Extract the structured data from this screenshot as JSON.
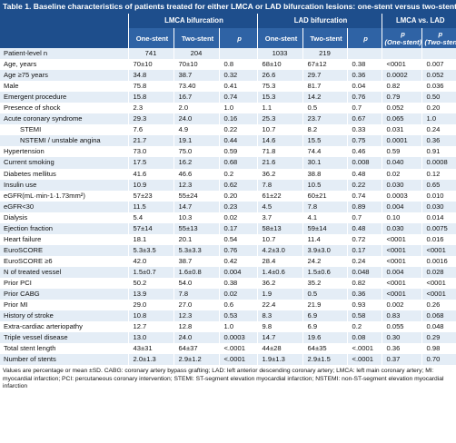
{
  "title": "Table 1. Baseline characteristics of patients treated for either LMCA or LAD bifurcation lesions: one-stent versus two-stent approach.",
  "header": {
    "lmca_group": "LMCA bifurcation",
    "lad_group": "LAD bifurcation",
    "cmp_group": "LMCA vs. LAD",
    "one_stent": "One-stent",
    "two_stent": "Two-stent",
    "p": "p",
    "p1_a": "p",
    "p1_b": "(One-stent)",
    "p2_a": "p",
    "p2_b": "(Two-stent)"
  },
  "rows": [
    [
      "Patient-level n",
      "741",
      "204",
      "",
      "1033",
      "219",
      "",
      "",
      ""
    ],
    [
      "Age, years",
      "70±10",
      "70±10",
      "0.8",
      "68±10",
      "67±12",
      "0.38",
      "<0001",
      "0.007"
    ],
    [
      "Age ≥75 years",
      "34.8",
      "38.7",
      "0.32",
      "26.6",
      "29.7",
      "0.36",
      "0.0002",
      "0.052"
    ],
    [
      "Male",
      "75.8",
      "73.40",
      "0.41",
      "75.3",
      "81.7",
      "0.04",
      "0.82",
      "0.036"
    ],
    [
      "Emergent procedure",
      "15.8",
      "16.7",
      "0.74",
      "15.3",
      "14.2",
      "0.76",
      "0.79",
      "0.50"
    ],
    [
      "Presence of shock",
      "2.3",
      "2.0",
      "1.0",
      "1.1",
      "0.5",
      "0.7",
      "0.052",
      "0.20"
    ],
    [
      "Acute coronary syndrome",
      "29.3",
      "24.0",
      "0.16",
      "25.3",
      "23.7",
      "0.67",
      "0.065",
      "1.0"
    ],
    [
      "STEMI",
      "7.6",
      "4.9",
      "0.22",
      "10.7",
      "8.2",
      "0.33",
      "0.031",
      "0.24"
    ],
    [
      "NSTEMI / unstable angina",
      "21.7",
      "19.1",
      "0.44",
      "14.6",
      "15.5",
      "0.75",
      "0.0001",
      "0.36"
    ],
    [
      "Hypertension",
      "73.0",
      "75.0",
      "0.59",
      "71.8",
      "74.4",
      "0.46",
      "0.59",
      "0.91"
    ],
    [
      "Current smoking",
      "17.5",
      "16.2",
      "0.68",
      "21.6",
      "30.1",
      "0.008",
      "0.040",
      "0.0008"
    ],
    [
      "Diabetes mellitus",
      "41.6",
      "46.6",
      "0.2",
      "36.2",
      "38.8",
      "0.48",
      "0.02",
      "0.12"
    ],
    [
      "Insulin use",
      "10.9",
      "12.3",
      "0.62",
      "7.8",
      "10.5",
      "0.22",
      "0.030",
      "0.65"
    ],
    [
      "eGFR(mL·min-1·1.73mm²)",
      "57±23",
      "55±24",
      "0.20",
      "61±22",
      "60±21",
      "0.74",
      "0.0003",
      "0.010"
    ],
    [
      "eGFR<30",
      "11.5",
      "14.7",
      "0.23",
      "4.5",
      "7.8",
      "0.89",
      "0.004",
      "0.030"
    ],
    [
      "Dialysis",
      "5.4",
      "10.3",
      "0.02",
      "3.7",
      "4.1",
      "0.7",
      "0.10",
      "0.014"
    ],
    [
      "Ejection fraction",
      "57±14",
      "55±13",
      "0.17",
      "58±13",
      "59±14",
      "0.48",
      "0.030",
      "0.0075"
    ],
    [
      "Heart failure",
      "18.1",
      "20.1",
      "0.54",
      "10.7",
      "11.4",
      "0.72",
      "<0001",
      "0.016"
    ],
    [
      "EuroSCORE",
      "5.3±3.5",
      "5.3±3.3",
      "0.76",
      "4.2±3.0",
      "3.9±3.0",
      "0.17",
      "<0001",
      "<0001"
    ],
    [
      "EuroSCORE ≥6",
      "42.0",
      "38.7",
      "0.42",
      "28.4",
      "24.2",
      "0.24",
      "<0001",
      "0.0016"
    ],
    [
      "N of treated vessel",
      "1.5±0.7",
      "1.6±0.8",
      "0.004",
      "1.4±0.6",
      "1.5±0.6",
      "0.048",
      "0.004",
      "0.028"
    ],
    [
      "Prior PCI",
      "50.2",
      "54.0",
      "0.38",
      "36.2",
      "35.2",
      "0.82",
      "<0001",
      "<0001"
    ],
    [
      "Prior CABG",
      "13.9",
      "7.8",
      "0.02",
      "1.9",
      "0.5",
      "0.36",
      "<0001",
      "<0001"
    ],
    [
      "Prior MI",
      "29.0",
      "27.0",
      "0.6",
      "22.4",
      "21.9",
      "0.93",
      "0.002",
      "0.26"
    ],
    [
      "History of stroke",
      "10.8",
      "12.3",
      "0.53",
      "8.3",
      "6.9",
      "0.58",
      "0.83",
      "0.068"
    ],
    [
      "Extra-cardiac arteriopathy",
      "12.7",
      "12.8",
      "1.0",
      "9.8",
      "6.9",
      "0.2",
      "0.055",
      "0.048"
    ],
    [
      "Triple vessel disease",
      "13.0",
      "24.0",
      "0.0003",
      "14.7",
      "19.6",
      "0.08",
      "0.30",
      "0.29"
    ],
    [
      "Total stent length",
      "43±31",
      "64±37",
      "<.0001",
      "44±28",
      "64±35",
      "<.0001",
      "0.36",
      "0.98"
    ],
    [
      "Number of stents",
      "2.0±1.3",
      "2.9±1.2",
      "<.0001",
      "1.9±1.3",
      "2.9±1.5",
      "<.0001",
      "0.37",
      "0.70"
    ]
  ],
  "indented_rows": [
    7,
    8
  ],
  "footnote": "Values are percentage or mean ±SD. CABG: coronary artery bypass grafting; LAD: left anterior descending coronary artery; LMCA: left main coronary artery; MI: myocardial infarction; PCI: percutaneous coronary intervention; STEMI: ST-segment elevation myocardial infarction; NSTEMI: non-ST-segment elevation myocardial infarction"
}
